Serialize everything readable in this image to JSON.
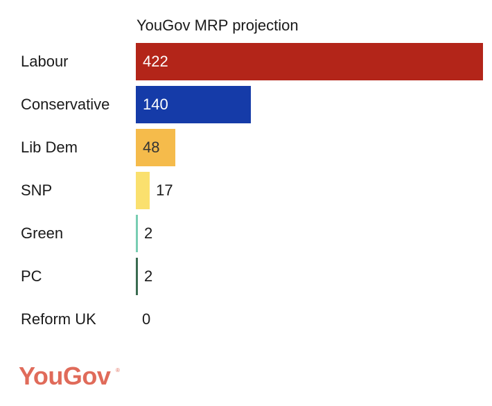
{
  "chart_data": {
    "type": "bar",
    "orientation": "horizontal",
    "title": "YouGov MRP projection",
    "categories": [
      "Labour",
      "Conservative",
      "Lib Dem",
      "SNP",
      "Green",
      "PC",
      "Reform UK"
    ],
    "values": [
      422,
      140,
      48,
      17,
      2,
      2,
      0
    ],
    "colors": [
      "#b32519",
      "#153ba8",
      "#f5bb4b",
      "#fae06e",
      "#78cdb2",
      "#3a6b50",
      "#cccccc"
    ],
    "value_label_colors": [
      "#ffffff",
      "#ffffff",
      "#333333",
      "#1a1a1a",
      "#1a1a1a",
      "#1a1a1a",
      "#1a1a1a"
    ],
    "xlim": [
      0,
      422
    ],
    "grid": false,
    "legend": "none"
  },
  "branding": {
    "logo_text": "YouGov",
    "logo_mark": "®"
  }
}
